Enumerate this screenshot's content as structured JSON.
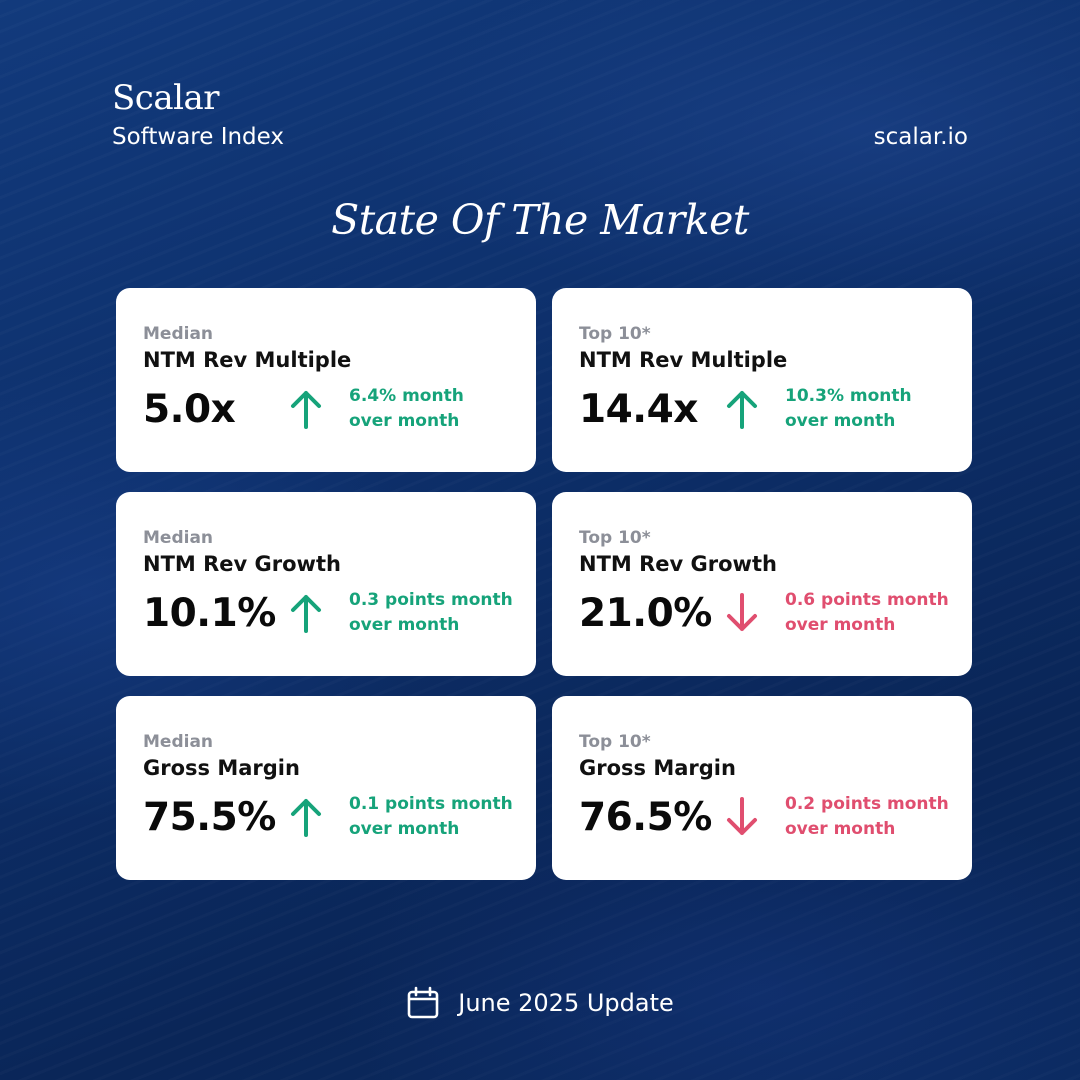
{
  "brand": {
    "name": "Scalar",
    "product": "Software Index",
    "website": "scalar.io"
  },
  "headline": "State Of The Market",
  "colors": {
    "up": "#16a37a",
    "down": "#e04e6f",
    "background": "#0d2f6a"
  },
  "cards": [
    {
      "group": "Median",
      "metric": "NTM Rev Multiple",
      "value": "5.0x",
      "direction": "up",
      "delta_line1": "6.4% month",
      "delta_line2": "over month",
      "icon": "arrow-up-icon"
    },
    {
      "group": "Top 10*",
      "metric": "NTM Rev Multiple",
      "value": "14.4x",
      "direction": "up",
      "delta_line1": "10.3% month",
      "delta_line2": "over month",
      "icon": "arrow-up-icon"
    },
    {
      "group": "Median",
      "metric": "NTM Rev Growth",
      "value": "10.1%",
      "direction": "up",
      "delta_line1": "0.3 points month",
      "delta_line2": "over month",
      "icon": "arrow-up-icon"
    },
    {
      "group": "Top 10*",
      "metric": "NTM Rev Growth",
      "value": "21.0%",
      "direction": "down",
      "delta_line1": "0.6 points month",
      "delta_line2": "over month",
      "icon": "arrow-down-icon"
    },
    {
      "group": "Median",
      "metric": "Gross Margin",
      "value": "75.5%",
      "direction": "up",
      "delta_line1": "0.1 points month",
      "delta_line2": "over month",
      "icon": "arrow-up-icon"
    },
    {
      "group": "Top 10*",
      "metric": "Gross Margin",
      "value": "76.5%",
      "direction": "down",
      "delta_line1": "0.2 points month",
      "delta_line2": "over month",
      "icon": "arrow-down-icon"
    }
  ],
  "footer": {
    "icon": "calendar-icon",
    "label": "June 2025 Update"
  }
}
